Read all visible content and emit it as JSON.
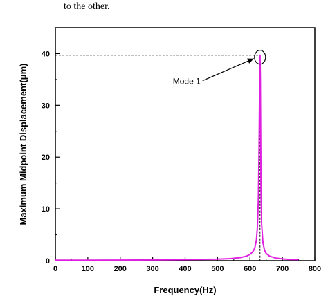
{
  "page": {
    "top_text": "to the other."
  },
  "chart_data": {
    "type": "line",
    "xlabel": "Frequency(Hz)",
    "ylabel": "Maximum Midpoint Displacement(μm)",
    "xlim": [
      0,
      800
    ],
    "ylim": [
      0,
      45
    ],
    "xticks": [
      0,
      100,
      200,
      300,
      400,
      500,
      600,
      700,
      800
    ],
    "yticks": [
      0,
      10,
      20,
      30,
      40
    ],
    "grid": false,
    "series": [
      {
        "color": "#e020e0",
        "x": [
          0,
          100,
          200,
          300,
          400,
          500,
          540,
          570,
          590,
          600,
          610,
          615,
          620,
          623,
          626,
          628,
          630,
          631,
          632,
          634,
          636,
          640,
          645,
          650,
          660,
          680,
          700,
          720,
          750
        ],
        "y": [
          0.1,
          0.1,
          0.12,
          0.15,
          0.2,
          0.3,
          0.4,
          0.6,
          0.9,
          1.2,
          1.8,
          2.5,
          4.0,
          6.5,
          12.0,
          22.0,
          35.0,
          39.7,
          35.0,
          14.0,
          7.0,
          3.5,
          2.0,
          1.4,
          0.9,
          0.5,
          0.35,
          0.25,
          0.2
        ]
      }
    ],
    "annotations": [
      {
        "text": "Mode 1",
        "x": 631,
        "y": 39.7
      }
    ]
  }
}
